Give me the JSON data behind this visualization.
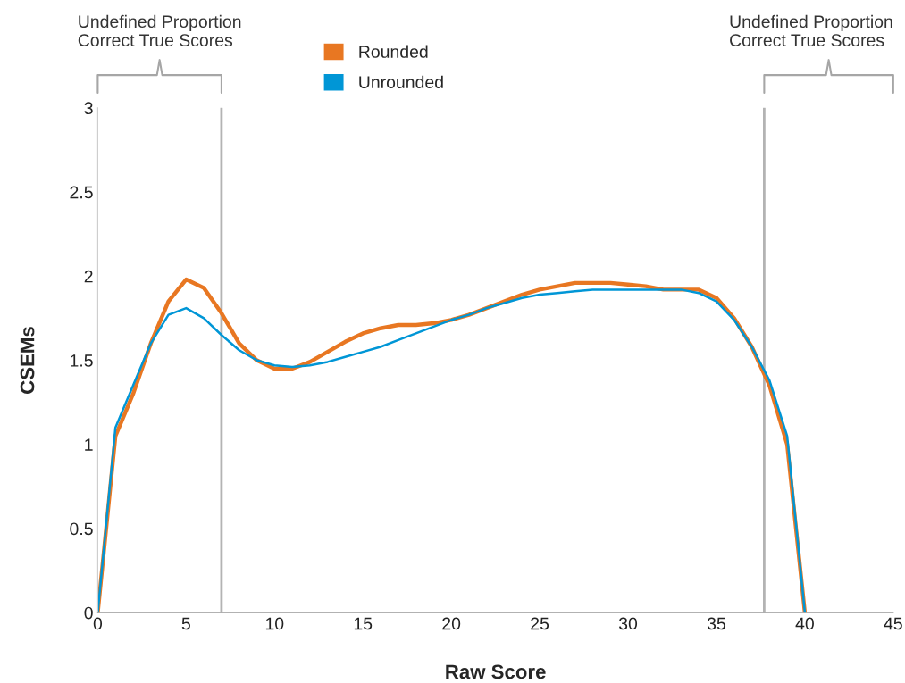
{
  "chart_data": {
    "type": "line",
    "xlabel": "Raw Score",
    "ylabel": "CSEMs",
    "x": [
      0,
      1,
      2,
      3,
      4,
      5,
      6,
      7,
      8,
      9,
      10,
      11,
      12,
      13,
      14,
      15,
      16,
      17,
      18,
      19,
      20,
      21,
      22,
      23,
      24,
      25,
      26,
      27,
      28,
      29,
      30,
      31,
      32,
      33,
      34,
      35,
      36,
      37,
      38,
      39,
      40
    ],
    "series": [
      {
        "name": "Rounded",
        "color": "#e87722",
        "values": [
          0,
          1.05,
          1.3,
          1.6,
          1.85,
          1.98,
          1.93,
          1.78,
          1.6,
          1.5,
          1.45,
          1.45,
          1.49,
          1.55,
          1.61,
          1.66,
          1.69,
          1.71,
          1.71,
          1.72,
          1.74,
          1.77,
          1.81,
          1.85,
          1.89,
          1.92,
          1.94,
          1.96,
          1.96,
          1.96,
          1.95,
          1.94,
          1.92,
          1.92,
          1.92,
          1.87,
          1.75,
          1.58,
          1.35,
          1.0,
          0
        ]
      },
      {
        "name": "Unrounded",
        "color": "#0096d6",
        "values": [
          0,
          1.1,
          1.35,
          1.6,
          1.77,
          1.81,
          1.75,
          1.65,
          1.56,
          1.5,
          1.47,
          1.46,
          1.47,
          1.49,
          1.52,
          1.55,
          1.58,
          1.62,
          1.66,
          1.7,
          1.74,
          1.77,
          1.81,
          1.84,
          1.87,
          1.89,
          1.9,
          1.91,
          1.92,
          1.92,
          1.92,
          1.92,
          1.92,
          1.92,
          1.9,
          1.85,
          1.74,
          1.58,
          1.38,
          1.05,
          0
        ]
      }
    ],
    "xlim": [
      0,
      45
    ],
    "xticks": [
      0,
      5,
      10,
      15,
      20,
      25,
      30,
      35,
      40,
      45
    ],
    "ylim": [
      0,
      3
    ],
    "yticks": [
      0,
      0.5,
      1,
      1.5,
      2,
      2.5,
      3
    ],
    "ref_lines": [
      {
        "axis": "x",
        "value": 7,
        "color": "#b3b3b3"
      },
      {
        "axis": "x",
        "value": 37.7,
        "color": "#b3b3b3"
      }
    ],
    "annotations": [
      "Undefined Proportion\nCorrect True Scores",
      "Undefined Proportion\nCorrect True Scores"
    ],
    "grid": false,
    "legend": "top",
    "marker": "none",
    "line_style": "solid"
  }
}
